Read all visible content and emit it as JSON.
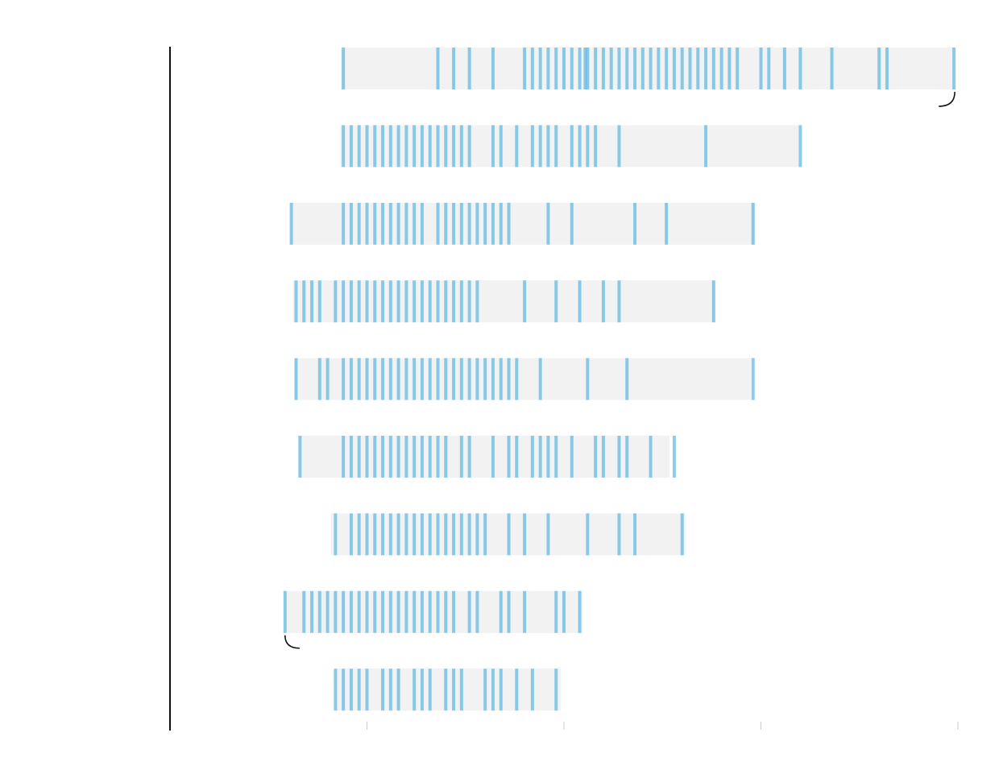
{
  "chart_data": {
    "type": "strip",
    "title": "",
    "xlabel": "",
    "ylabel": "",
    "xlim": [
      0,
      100
    ],
    "grid": false,
    "legend": "none",
    "colors": {
      "range": "#f2f2f2",
      "tick": "#5bb7e3",
      "axis": "#111111",
      "annotation": "#111111"
    },
    "series": [
      {
        "range": [
          21.7,
          99.5
        ],
        "x": [
          22,
          34,
          36,
          38,
          41,
          45,
          46,
          47,
          48,
          49,
          50,
          51,
          52,
          52.7,
          53,
          54,
          55,
          56,
          57,
          58,
          59,
          60,
          61,
          62,
          63,
          64,
          65,
          66,
          67,
          68,
          69,
          70,
          71,
          72,
          75,
          76,
          78,
          80,
          84,
          90,
          91,
          99.5
        ]
      },
      {
        "range": [
          21.6,
          79.8
        ],
        "x": [
          22,
          23,
          24,
          25,
          26,
          27,
          28,
          29,
          30,
          31,
          32,
          33,
          34,
          35,
          36,
          37,
          38,
          41,
          42,
          44,
          46,
          47,
          48,
          49,
          51,
          52,
          53,
          54,
          57,
          68,
          80
        ]
      },
      {
        "range": [
          15.3,
          74.3
        ],
        "x": [
          15.4,
          22,
          23,
          24,
          25,
          26,
          27,
          28,
          29,
          30,
          31,
          32,
          34,
          35,
          36,
          37,
          38,
          39,
          40,
          41,
          42,
          43,
          48,
          51,
          59,
          63,
          74
        ]
      },
      {
        "range": [
          15.6,
          69.1
        ],
        "x": [
          16,
          17,
          18,
          19,
          21,
          22,
          23,
          24,
          25,
          26,
          27,
          28,
          29,
          30,
          31,
          32,
          33,
          34,
          35,
          36,
          37,
          38,
          39,
          45,
          49,
          52,
          55,
          57,
          69
        ]
      },
      {
        "range": [
          15.9,
          73.7
        ],
        "x": [
          16,
          19,
          20,
          22,
          23,
          24,
          25,
          26,
          27,
          28,
          29,
          30,
          31,
          32,
          33,
          34,
          35,
          36,
          37,
          38,
          39,
          40,
          41,
          42,
          43,
          44,
          47,
          53,
          58,
          74
        ]
      },
      {
        "range": [
          16.3,
          63.4
        ],
        "x": [
          16.5,
          22,
          23,
          24,
          25,
          26,
          27,
          28,
          29,
          30,
          31,
          32,
          33,
          34,
          35,
          37,
          38,
          41,
          43,
          44,
          46,
          47,
          48,
          49,
          51,
          54,
          55,
          57,
          58,
          61,
          64
        ]
      },
      {
        "range": [
          20.4,
          65.4
        ],
        "x": [
          21,
          23,
          24,
          25,
          26,
          27,
          28,
          29,
          30,
          31,
          32,
          33,
          34,
          35,
          36,
          37,
          38,
          39,
          40,
          43,
          45,
          48,
          53,
          57,
          59,
          65
        ]
      },
      {
        "range": [
          14.5,
          52.4
        ],
        "x": [
          14.6,
          17,
          18,
          19,
          20,
          21,
          22,
          23,
          24,
          25,
          26,
          27,
          28,
          29,
          30,
          31,
          32,
          33,
          34,
          35,
          36,
          38,
          39,
          42,
          43,
          45,
          49,
          50,
          52
        ]
      },
      {
        "range": [
          20.9,
          49.6
        ],
        "x": [
          21,
          22,
          23,
          24,
          25,
          27,
          28,
          29,
          31,
          32,
          33,
          35,
          36,
          37,
          40,
          41,
          42,
          44,
          46,
          49
        ]
      }
    ],
    "annotations": [
      {
        "series_index": 0,
        "at": "max",
        "shape": "bracket"
      },
      {
        "series_index": 7,
        "at": "min",
        "shape": "bracket"
      }
    ]
  }
}
